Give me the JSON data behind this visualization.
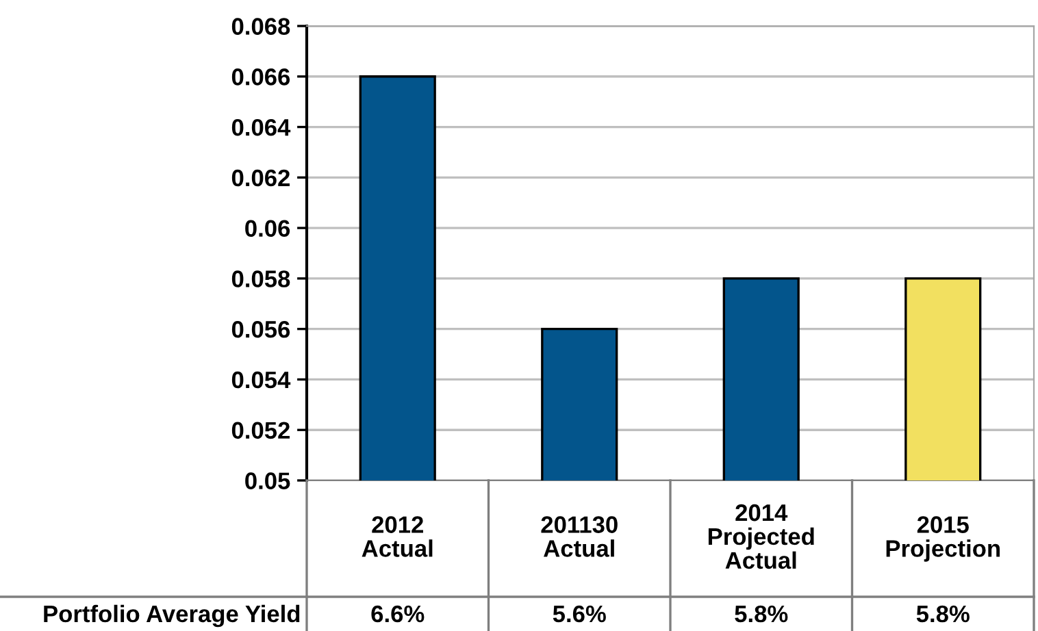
{
  "chart_data": {
    "type": "bar",
    "categories": [
      "2012\nActual",
      "201130\nActual",
      "2014\nProjected\nActual",
      "2015\nProjection"
    ],
    "series": [
      {
        "name": "Portfolio Average Yield",
        "colors": [
          "#03558c",
          "#03558c",
          "#03558c",
          "#f2e060"
        ],
        "values": [
          0.066,
          0.056,
          0.058,
          0.058
        ],
        "value_labels": [
          "6.6%",
          "5.6%",
          "5.8%",
          "5.8%"
        ]
      }
    ],
    "ylim": [
      0.05,
      0.068
    ],
    "yticks": [
      0.05,
      0.052,
      0.054,
      0.056,
      0.058,
      0.06,
      0.062,
      0.064,
      0.066,
      0.068
    ],
    "grid": "y",
    "legend": false
  }
}
